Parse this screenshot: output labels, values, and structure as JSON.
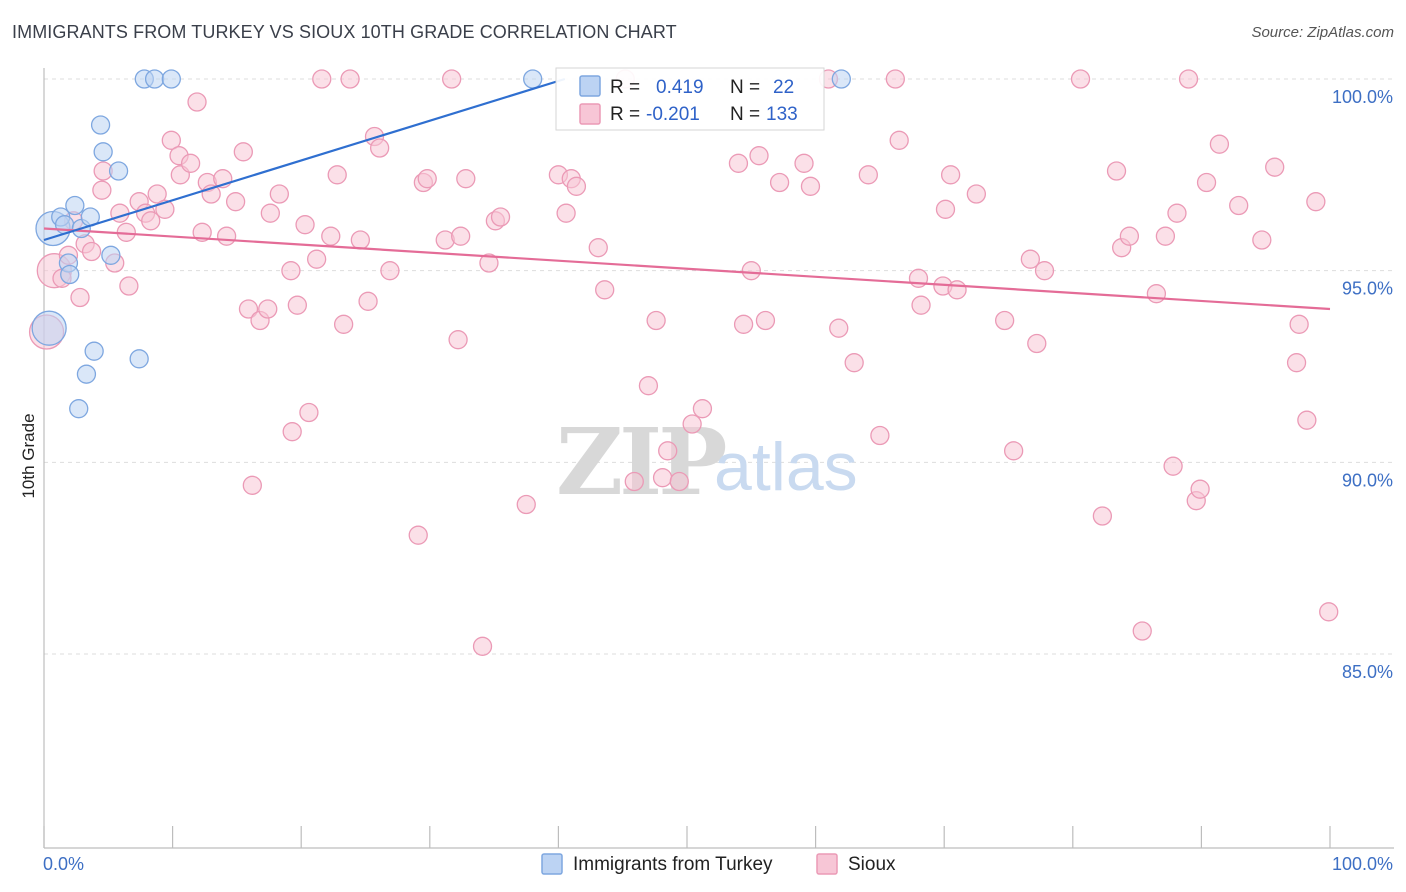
{
  "title": "IMMIGRANTS FROM TURKEY VS SIOUX 10TH GRADE CORRELATION CHART",
  "source": "Source: ZipAtlas.com",
  "watermark": {
    "zip": "ZIP",
    "atlas": "atlas"
  },
  "colors": {
    "turkey_fill": "#bcd3f3",
    "turkey_stroke": "#7ea7e0",
    "turkey_line": "#2f6fd0",
    "sioux_fill": "#f7c6d6",
    "sioux_stroke": "#eb9ab6",
    "sioux_line": "#e46c97",
    "grid": "#dddddd",
    "tick_label": "#3d6fc4"
  },
  "legend": {
    "r_label": "R =",
    "n_label": "N =",
    "series": [
      {
        "name": "Immigrants from Turkey",
        "r": "0.419",
        "n": "22"
      },
      {
        "name": "Sioux",
        "r": "-0.201",
        "n": "133"
      }
    ]
  },
  "chart_data": {
    "type": "scatter",
    "title": "IMMIGRANTS FROM TURKEY VS SIOUX 10TH GRADE CORRELATION CHART",
    "xlabel": "",
    "ylabel": "10th Grade",
    "xlim": [
      0,
      100
    ],
    "ylim": [
      80.0,
      100.0
    ],
    "x_tick_labels": [
      "0.0%",
      "100.0%"
    ],
    "y_ticks": [
      85,
      90,
      95,
      100
    ],
    "y_tick_labels": [
      "85.0%",
      "90.0%",
      "95.0%",
      "100.0%"
    ],
    "grid": true,
    "series": [
      {
        "name": "Immigrants from Turkey",
        "trend": {
          "x": [
            0,
            40.5
          ],
          "y": [
            95.8,
            100.0
          ]
        },
        "points": [
          [
            0.4,
            93.5
          ],
          [
            0.7,
            96.1
          ],
          [
            1.3,
            96.4
          ],
          [
            1.6,
            96.2
          ],
          [
            1.9,
            95.2
          ],
          [
            2.0,
            94.9
          ],
          [
            2.4,
            96.7
          ],
          [
            2.9,
            96.1
          ],
          [
            3.3,
            92.3
          ],
          [
            3.6,
            96.4
          ],
          [
            3.9,
            92.9
          ],
          [
            4.4,
            98.8
          ],
          [
            4.6,
            98.1
          ],
          [
            5.2,
            95.4
          ],
          [
            5.8,
            97.6
          ],
          [
            7.4,
            92.7
          ],
          [
            7.8,
            100.0
          ],
          [
            8.6,
            100.0
          ],
          [
            9.9,
            100.0
          ],
          [
            2.7,
            91.4
          ],
          [
            38.0,
            100.0
          ],
          [
            62.0,
            100.0
          ]
        ]
      },
      {
        "name": "Sioux",
        "trend": {
          "x": [
            0,
            100
          ],
          "y": [
            96.1,
            94.0
          ]
        },
        "points": [
          [
            0.2,
            93.4
          ],
          [
            0.8,
            95.0
          ],
          [
            1.4,
            94.8
          ],
          [
            1.9,
            95.4
          ],
          [
            2.3,
            96.3
          ],
          [
            2.8,
            94.3
          ],
          [
            3.2,
            95.7
          ],
          [
            3.7,
            95.5
          ],
          [
            4.5,
            97.1
          ],
          [
            4.6,
            97.6
          ],
          [
            5.5,
            95.2
          ],
          [
            5.9,
            96.5
          ],
          [
            6.4,
            96.0
          ],
          [
            6.6,
            94.6
          ],
          [
            7.4,
            96.8
          ],
          [
            7.9,
            96.5
          ],
          [
            8.3,
            96.3
          ],
          [
            8.8,
            97.0
          ],
          [
            9.4,
            96.6
          ],
          [
            9.9,
            98.4
          ],
          [
            10.5,
            98.0
          ],
          [
            10.6,
            97.5
          ],
          [
            11.4,
            97.8
          ],
          [
            11.9,
            99.4
          ],
          [
            12.3,
            96.0
          ],
          [
            12.7,
            97.3
          ],
          [
            13.0,
            97.0
          ],
          [
            13.9,
            97.4
          ],
          [
            14.2,
            95.9
          ],
          [
            14.9,
            96.8
          ],
          [
            15.5,
            98.1
          ],
          [
            15.9,
            94.0
          ],
          [
            16.2,
            89.4
          ],
          [
            16.8,
            93.7
          ],
          [
            17.4,
            94.0
          ],
          [
            17.6,
            96.5
          ],
          [
            18.3,
            97.0
          ],
          [
            19.2,
            95.0
          ],
          [
            19.3,
            90.8
          ],
          [
            19.7,
            94.1
          ],
          [
            20.3,
            96.2
          ],
          [
            20.6,
            91.3
          ],
          [
            21.2,
            95.3
          ],
          [
            21.6,
            100.0
          ],
          [
            22.3,
            95.9
          ],
          [
            22.8,
            97.5
          ],
          [
            23.3,
            93.6
          ],
          [
            23.8,
            100.0
          ],
          [
            24.6,
            95.8
          ],
          [
            25.2,
            94.2
          ],
          [
            25.7,
            98.5
          ],
          [
            26.1,
            98.2
          ],
          [
            26.9,
            95.0
          ],
          [
            29.1,
            88.1
          ],
          [
            29.5,
            97.3
          ],
          [
            29.8,
            97.4
          ],
          [
            31.2,
            95.8
          ],
          [
            31.7,
            100.0
          ],
          [
            32.2,
            93.2
          ],
          [
            32.4,
            95.9
          ],
          [
            32.8,
            97.4
          ],
          [
            34.1,
            85.2
          ],
          [
            34.6,
            95.2
          ],
          [
            35.1,
            96.3
          ],
          [
            35.5,
            96.4
          ],
          [
            37.5,
            88.9
          ],
          [
            40.0,
            97.5
          ],
          [
            40.6,
            96.5
          ],
          [
            41.0,
            97.4
          ],
          [
            41.4,
            97.2
          ],
          [
            43.1,
            95.6
          ],
          [
            43.6,
            94.5
          ],
          [
            45.2,
            100.0
          ],
          [
            45.9,
            89.5
          ],
          [
            47.0,
            92.0
          ],
          [
            47.6,
            93.7
          ],
          [
            48.1,
            89.6
          ],
          [
            48.5,
            90.3
          ],
          [
            49.4,
            89.5
          ],
          [
            50.4,
            91.0
          ],
          [
            51.2,
            91.4
          ],
          [
            54.0,
            97.8
          ],
          [
            54.4,
            93.6
          ],
          [
            55.0,
            95.0
          ],
          [
            55.6,
            98.0
          ],
          [
            56.1,
            93.7
          ],
          [
            57.2,
            97.3
          ],
          [
            59.1,
            97.8
          ],
          [
            59.6,
            97.2
          ],
          [
            61.0,
            100.0
          ],
          [
            61.8,
            93.5
          ],
          [
            63.0,
            92.6
          ],
          [
            64.1,
            97.5
          ],
          [
            65.0,
            90.7
          ],
          [
            66.2,
            100.0
          ],
          [
            66.5,
            98.4
          ],
          [
            68.0,
            94.8
          ],
          [
            68.2,
            94.1
          ],
          [
            69.9,
            94.6
          ],
          [
            70.1,
            96.6
          ],
          [
            70.5,
            97.5
          ],
          [
            71.0,
            94.5
          ],
          [
            72.5,
            97.0
          ],
          [
            74.7,
            93.7
          ],
          [
            75.4,
            90.3
          ],
          [
            76.7,
            95.3
          ],
          [
            77.2,
            93.1
          ],
          [
            77.8,
            95.0
          ],
          [
            80.6,
            100.0
          ],
          [
            82.3,
            88.6
          ],
          [
            83.4,
            97.6
          ],
          [
            83.8,
            95.6
          ],
          [
            84.4,
            95.9
          ],
          [
            85.4,
            85.6
          ],
          [
            86.5,
            94.4
          ],
          [
            87.2,
            95.9
          ],
          [
            87.8,
            89.9
          ],
          [
            88.1,
            96.5
          ],
          [
            89.0,
            100.0
          ],
          [
            89.6,
            89.0
          ],
          [
            89.9,
            89.3
          ],
          [
            90.4,
            97.3
          ],
          [
            91.4,
            98.3
          ],
          [
            92.9,
            96.7
          ],
          [
            94.7,
            95.8
          ],
          [
            95.7,
            97.7
          ],
          [
            97.4,
            92.6
          ],
          [
            97.6,
            93.6
          ],
          [
            98.2,
            91.1
          ],
          [
            98.9,
            96.8
          ],
          [
            99.9,
            86.1
          ]
        ]
      }
    ]
  }
}
